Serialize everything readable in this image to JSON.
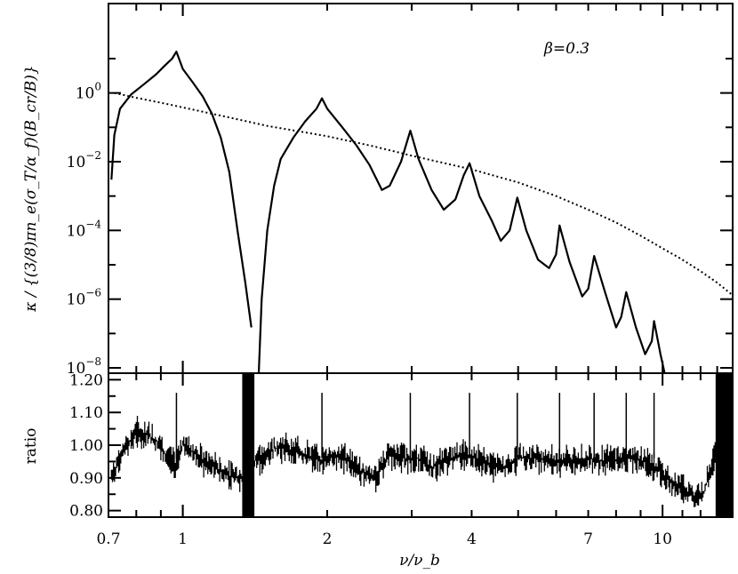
{
  "chart_data": [
    {
      "type": "line",
      "panel": "top",
      "annotation": "β=0.3",
      "ylabel": "κ / {(3/8)πn_e(σ_T/α_f)(B_cr/B)}",
      "xlabel": "",
      "xscale": "log",
      "yscale": "log",
      "xlim": [
        0.7,
        14
      ],
      "ylim": [
        7e-09,
        400
      ],
      "yticks": [
        1e-08,
        1e-06,
        0.0001,
        0.01,
        1
      ],
      "ytick_labels": [
        {
          "base": "10",
          "exp": "−8"
        },
        {
          "base": "10",
          "exp": "−6"
        },
        {
          "base": "10",
          "exp": "−4"
        },
        {
          "base": "10",
          "exp": "−2"
        },
        {
          "base": "10",
          "exp": "0"
        }
      ],
      "series": [
        {
          "style": "solid",
          "points": [
            [
              0.71,
              0.003
            ],
            [
              0.72,
              0.06
            ],
            [
              0.74,
              0.35
            ],
            [
              0.78,
              0.9
            ],
            [
              0.83,
              1.8
            ],
            [
              0.88,
              3.5
            ],
            [
              0.92,
              6.5
            ],
            [
              0.95,
              10
            ],
            [
              0.97,
              16
            ],
            [
              1.0,
              5
            ],
            [
              1.05,
              2
            ],
            [
              1.1,
              0.8
            ],
            [
              1.15,
              0.25
            ],
            [
              1.2,
              0.05
            ],
            [
              1.25,
              0.005
            ],
            [
              1.3,
              0.0001
            ],
            [
              1.35,
              3e-06
            ],
            [
              1.39,
              1.5e-07
            ]
          ]
        },
        {
          "style": "solid",
          "points": [
            [
              1.44,
              7e-09
            ],
            [
              1.46,
              1e-06
            ],
            [
              1.5,
              0.0001
            ],
            [
              1.55,
              0.002
            ],
            [
              1.6,
              0.012
            ],
            [
              1.7,
              0.05
            ],
            [
              1.8,
              0.15
            ],
            [
              1.9,
              0.35
            ],
            [
              1.95,
              0.7
            ],
            [
              2.0,
              0.35
            ],
            [
              2.15,
              0.1
            ],
            [
              2.3,
              0.03
            ],
            [
              2.45,
              0.008
            ],
            [
              2.6,
              0.0015
            ],
            [
              2.7,
              0.002
            ],
            [
              2.85,
              0.01
            ],
            [
              2.98,
              0.08
            ],
            [
              3.1,
              0.012
            ],
            [
              3.3,
              0.0015
            ],
            [
              3.5,
              0.0004
            ],
            [
              3.7,
              0.0008
            ],
            [
              3.85,
              0.004
            ],
            [
              3.96,
              0.009
            ],
            [
              4.15,
              0.001
            ],
            [
              4.4,
              0.0002
            ],
            [
              4.6,
              5e-05
            ],
            [
              4.8,
              0.0001
            ],
            [
              4.98,
              0.0009
            ],
            [
              5.2,
              0.0001
            ],
            [
              5.5,
              1.4e-05
            ],
            [
              5.8,
              8e-06
            ],
            [
              6.0,
              2e-05
            ],
            [
              6.1,
              0.00014
            ],
            [
              6.4,
              1.2e-05
            ],
            [
              6.8,
              1.2e-06
            ],
            [
              7.0,
              2e-06
            ],
            [
              7.2,
              1.8e-05
            ],
            [
              7.6,
              1.5e-06
            ],
            [
              8.0,
              1.5e-07
            ],
            [
              8.2,
              3e-07
            ],
            [
              8.4,
              1.6e-06
            ],
            [
              8.8,
              1.5e-07
            ],
            [
              9.2,
              2.5e-08
            ],
            [
              9.5,
              6e-08
            ],
            [
              9.6,
              2.3e-07
            ],
            [
              9.9,
              2.5e-08
            ],
            [
              10.1,
              7e-09
            ]
          ]
        },
        {
          "style": "dotted",
          "points": [
            [
              0.72,
              1.0
            ],
            [
              0.8,
              0.72
            ],
            [
              0.9,
              0.52
            ],
            [
              1.0,
              0.38
            ],
            [
              1.2,
              0.22
            ],
            [
              1.5,
              0.11
            ],
            [
              2.0,
              0.055
            ],
            [
              2.5,
              0.028
            ],
            [
              3.0,
              0.015
            ],
            [
              4.0,
              0.006
            ],
            [
              5.0,
              0.0025
            ],
            [
              6.0,
              0.001
            ],
            [
              7.0,
              0.0004
            ],
            [
              8.0,
              0.00017
            ],
            [
              9.0,
              7e-05
            ],
            [
              10.0,
              3e-05
            ],
            [
              11.0,
              1.4e-05
            ],
            [
              12.0,
              6.5e-06
            ],
            [
              13.0,
              3e-06
            ],
            [
              14.0,
              1.3e-06
            ]
          ]
        }
      ]
    },
    {
      "type": "line",
      "panel": "bottom",
      "ylabel": "ratio",
      "xlabel": "ν/ν_b",
      "xscale": "log",
      "xlim": [
        0.7,
        14
      ],
      "ylim": [
        0.78,
        1.22
      ],
      "xticks": [
        0.7,
        1,
        2,
        4,
        7,
        10
      ],
      "xtick_labels": [
        "0.7",
        "1",
        "2",
        "4",
        "7",
        "10"
      ],
      "yticks": [
        0.8,
        0.9,
        1.0,
        1.1,
        1.2
      ],
      "ytick_labels": [
        "0.80",
        "0.90",
        "1.00",
        "1.10",
        "1.20"
      ],
      "series": [
        {
          "style": "noisy-band",
          "points": [
            [
              0.71,
              0.9
            ],
            [
              0.75,
              0.98
            ],
            [
              0.8,
              1.04
            ],
            [
              0.85,
              1.03
            ],
            [
              0.9,
              1.0
            ],
            [
              0.93,
              0.96
            ],
            [
              0.97,
              0.94
            ],
            [
              1.0,
              1.0
            ],
            [
              1.05,
              0.98
            ],
            [
              1.1,
              0.95
            ],
            [
              1.15,
              0.94
            ],
            [
              1.2,
              0.92
            ],
            [
              1.28,
              0.9
            ],
            [
              1.35,
              0.9
            ],
            [
              1.39,
              0.95
            ],
            [
              1.47,
              0.96
            ],
            [
              1.55,
              0.99
            ],
            [
              1.65,
              0.99
            ],
            [
              1.8,
              0.97
            ],
            [
              1.95,
              0.95
            ],
            [
              2.05,
              0.97
            ],
            [
              2.2,
              0.96
            ],
            [
              2.35,
              0.92
            ],
            [
              2.5,
              0.9
            ],
            [
              2.7,
              0.97
            ],
            [
              2.9,
              0.96
            ],
            [
              3.1,
              0.96
            ],
            [
              3.3,
              0.93
            ],
            [
              3.6,
              0.96
            ],
            [
              3.9,
              0.97
            ],
            [
              4.2,
              0.95
            ],
            [
              4.6,
              0.93
            ],
            [
              5.0,
              0.96
            ],
            [
              5.5,
              0.96
            ],
            [
              6.0,
              0.95
            ],
            [
              6.5,
              0.95
            ],
            [
              7.0,
              0.96
            ],
            [
              7.6,
              0.95
            ],
            [
              8.2,
              0.96
            ],
            [
              8.8,
              0.96
            ],
            [
              9.5,
              0.94
            ],
            [
              10.2,
              0.9
            ],
            [
              11.0,
              0.87
            ],
            [
              11.7,
              0.84
            ],
            [
              12.2,
              0.86
            ],
            [
              12.8,
              0.96
            ],
            [
              13.3,
              1.1
            ],
            [
              14.0,
              1.2
            ]
          ]
        }
      ]
    }
  ]
}
